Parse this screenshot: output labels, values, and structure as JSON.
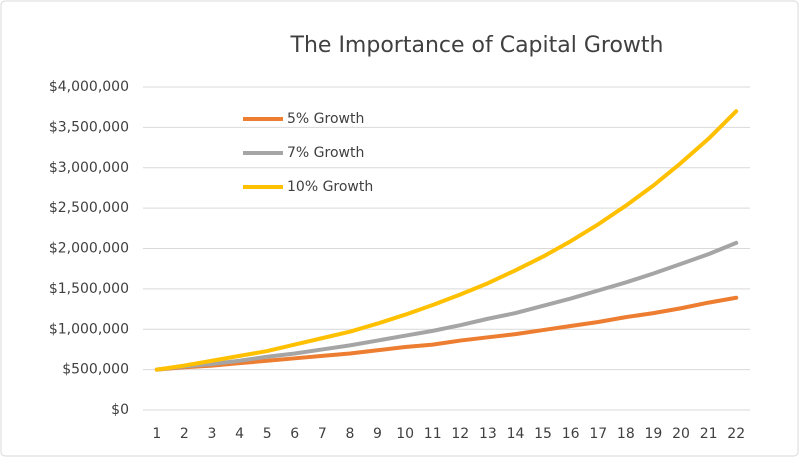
{
  "chart_data": {
    "type": "line",
    "title": "The Importance of Capital Growth",
    "categories": [
      1,
      2,
      3,
      4,
      5,
      6,
      7,
      8,
      9,
      10,
      11,
      12,
      13,
      14,
      15,
      16,
      17,
      18,
      19,
      20,
      21,
      22
    ],
    "series": [
      {
        "name": "5% Growth",
        "color": "#ed7d31",
        "values": [
          500000,
          530000,
          550000,
          580000,
          610000,
          640000,
          670000,
          700000,
          740000,
          780000,
          810000,
          860000,
          900000,
          940000,
          990000,
          1040000,
          1090000,
          1150000,
          1200000,
          1260000,
          1330000,
          1390000
        ]
      },
      {
        "name": "7% Growth",
        "color": "#a5a5a5",
        "values": [
          500000,
          540000,
          570000,
          610000,
          660000,
          700000,
          750000,
          800000,
          860000,
          920000,
          980000,
          1050000,
          1130000,
          1200000,
          1290000,
          1380000,
          1480000,
          1580000,
          1690000,
          1810000,
          1930000,
          2070000
        ]
      },
      {
        "name": "10% Growth",
        "color": "#ffc000",
        "values": [
          500000,
          550000,
          610000,
          670000,
          730000,
          810000,
          890000,
          970000,
          1070000,
          1180000,
          1300000,
          1430000,
          1570000,
          1730000,
          1900000,
          2090000,
          2300000,
          2530000,
          2780000,
          3060000,
          3360000,
          3700000
        ]
      }
    ],
    "ylim": [
      0,
      4000000
    ],
    "yticks": [
      {
        "value": 0,
        "label": "$0"
      },
      {
        "value": 500000,
        "label": "$500,000"
      },
      {
        "value": 1000000,
        "label": "$1,000,000"
      },
      {
        "value": 1500000,
        "label": "$1,500,000"
      },
      {
        "value": 2000000,
        "label": "$2,000,000"
      },
      {
        "value": 2500000,
        "label": "$2,500,000"
      },
      {
        "value": 3000000,
        "label": "$3,000,000"
      },
      {
        "value": 3500000,
        "label": "$3,500,000"
      },
      {
        "value": 4000000,
        "label": "$4,000,000"
      }
    ],
    "grid": true,
    "legend": "upper left"
  }
}
